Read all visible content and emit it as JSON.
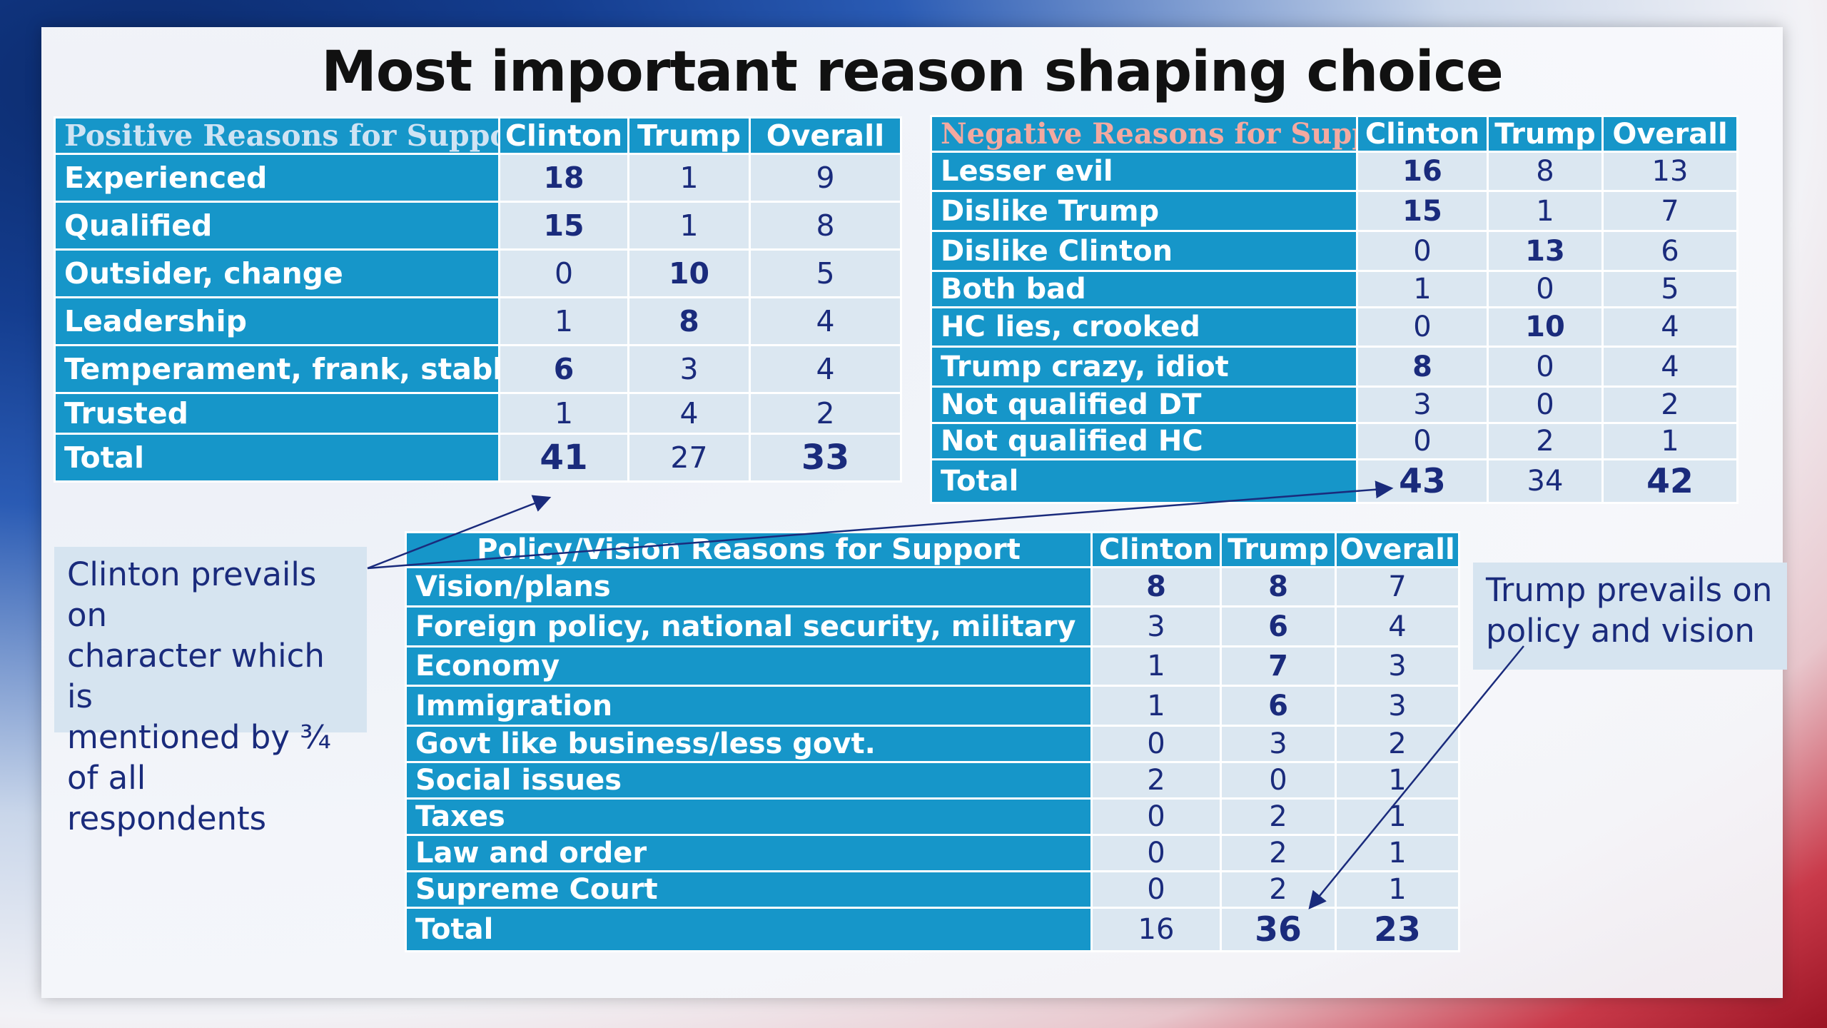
{
  "slide": {
    "title": "Most important reason shaping choice"
  },
  "positive_table": {
    "header": [
      "Positive Reasons for Support",
      "Clinton",
      "Trump",
      "Overall"
    ],
    "rows": [
      {
        "label": "Experienced",
        "clinton": "18",
        "trump": "1",
        "overall": "9"
      },
      {
        "label": "Qualified",
        "clinton": "15",
        "trump": "1",
        "overall": "8"
      },
      {
        "label": "Outsider, change",
        "clinton": "0",
        "trump": "10",
        "overall": "5"
      },
      {
        "label": "Leadership",
        "clinton": "1",
        "trump": "8",
        "overall": "4"
      },
      {
        "label": "Temperament, frank, stable",
        "clinton": "6",
        "trump": "3",
        "overall": "4"
      },
      {
        "label": "Trusted",
        "clinton": "1",
        "trump": "4",
        "overall": "2"
      },
      {
        "label": "Total",
        "clinton": "41",
        "trump": "27",
        "overall": "33"
      }
    ],
    "header_label_color": "#cfe3f3"
  },
  "negative_table": {
    "header": [
      "Negative Reasons for Support",
      "Clinton",
      "Trump",
      "Overall"
    ],
    "rows": [
      {
        "label": "Lesser evil",
        "clinton": "16",
        "trump": "8",
        "overall": "13"
      },
      {
        "label": "Dislike Trump",
        "clinton": "15",
        "trump": "1",
        "overall": "7"
      },
      {
        "label": "Dislike Clinton",
        "clinton": "0",
        "trump": "13",
        "overall": "6"
      },
      {
        "label": "Both bad",
        "clinton": "1",
        "trump": "0",
        "overall": "5"
      },
      {
        "label": "HC lies, crooked",
        "clinton": "0",
        "trump": "10",
        "overall": "4"
      },
      {
        "label": "Trump crazy, idiot",
        "clinton": "8",
        "trump": "0",
        "overall": "4"
      },
      {
        "label": "Not qualified DT",
        "clinton": "3",
        "trump": "0",
        "overall": "2"
      },
      {
        "label": "Not qualified HC",
        "clinton": "0",
        "trump": "2",
        "overall": "1"
      },
      {
        "label": "Total",
        "clinton": "43",
        "trump": "34",
        "overall": "42"
      }
    ],
    "header_label_color": "#f4a9a0"
  },
  "policy_table": {
    "header": [
      "Policy/Vision Reasons for Support",
      "Clinton",
      "Trump",
      "Overall"
    ],
    "rows": [
      {
        "label": "Vision/plans",
        "clinton": "8",
        "trump": "8",
        "overall": "7"
      },
      {
        "label": "Foreign policy, national security, military",
        "clinton": "3",
        "trump": "6",
        "overall": "4"
      },
      {
        "label": "Economy",
        "clinton": "1",
        "trump": "7",
        "overall": "3"
      },
      {
        "label": "Immigration",
        "clinton": "1",
        "trump": "6",
        "overall": "3"
      },
      {
        "label": "Govt like business/less govt.",
        "clinton": "0",
        "trump": "3",
        "overall": "2"
      },
      {
        "label": "Social issues",
        "clinton": "2",
        "trump": "0",
        "overall": "1"
      },
      {
        "label": "Taxes",
        "clinton": "0",
        "trump": "2",
        "overall": "1"
      },
      {
        "label": "Law and order",
        "clinton": "0",
        "trump": "2",
        "overall": "1"
      },
      {
        "label": "Supreme Court",
        "clinton": "0",
        "trump": "2",
        "overall": "1"
      },
      {
        "label": "Total",
        "clinton": "16",
        "trump": "36",
        "overall": "23"
      }
    ]
  },
  "callouts": {
    "clinton": [
      "Clinton prevails on",
      "character which is",
      "mentioned by ¾",
      "of all respondents"
    ],
    "trump": [
      "Trump prevails on",
      "policy and vision"
    ]
  },
  "colors": {
    "table_label_bg": "#1696c9",
    "table_value_bg": "#dbe7f1",
    "value_text": "#1a2b7c",
    "callout_bg": "#d6e4f0",
    "arrow": "#1a2b7c"
  }
}
